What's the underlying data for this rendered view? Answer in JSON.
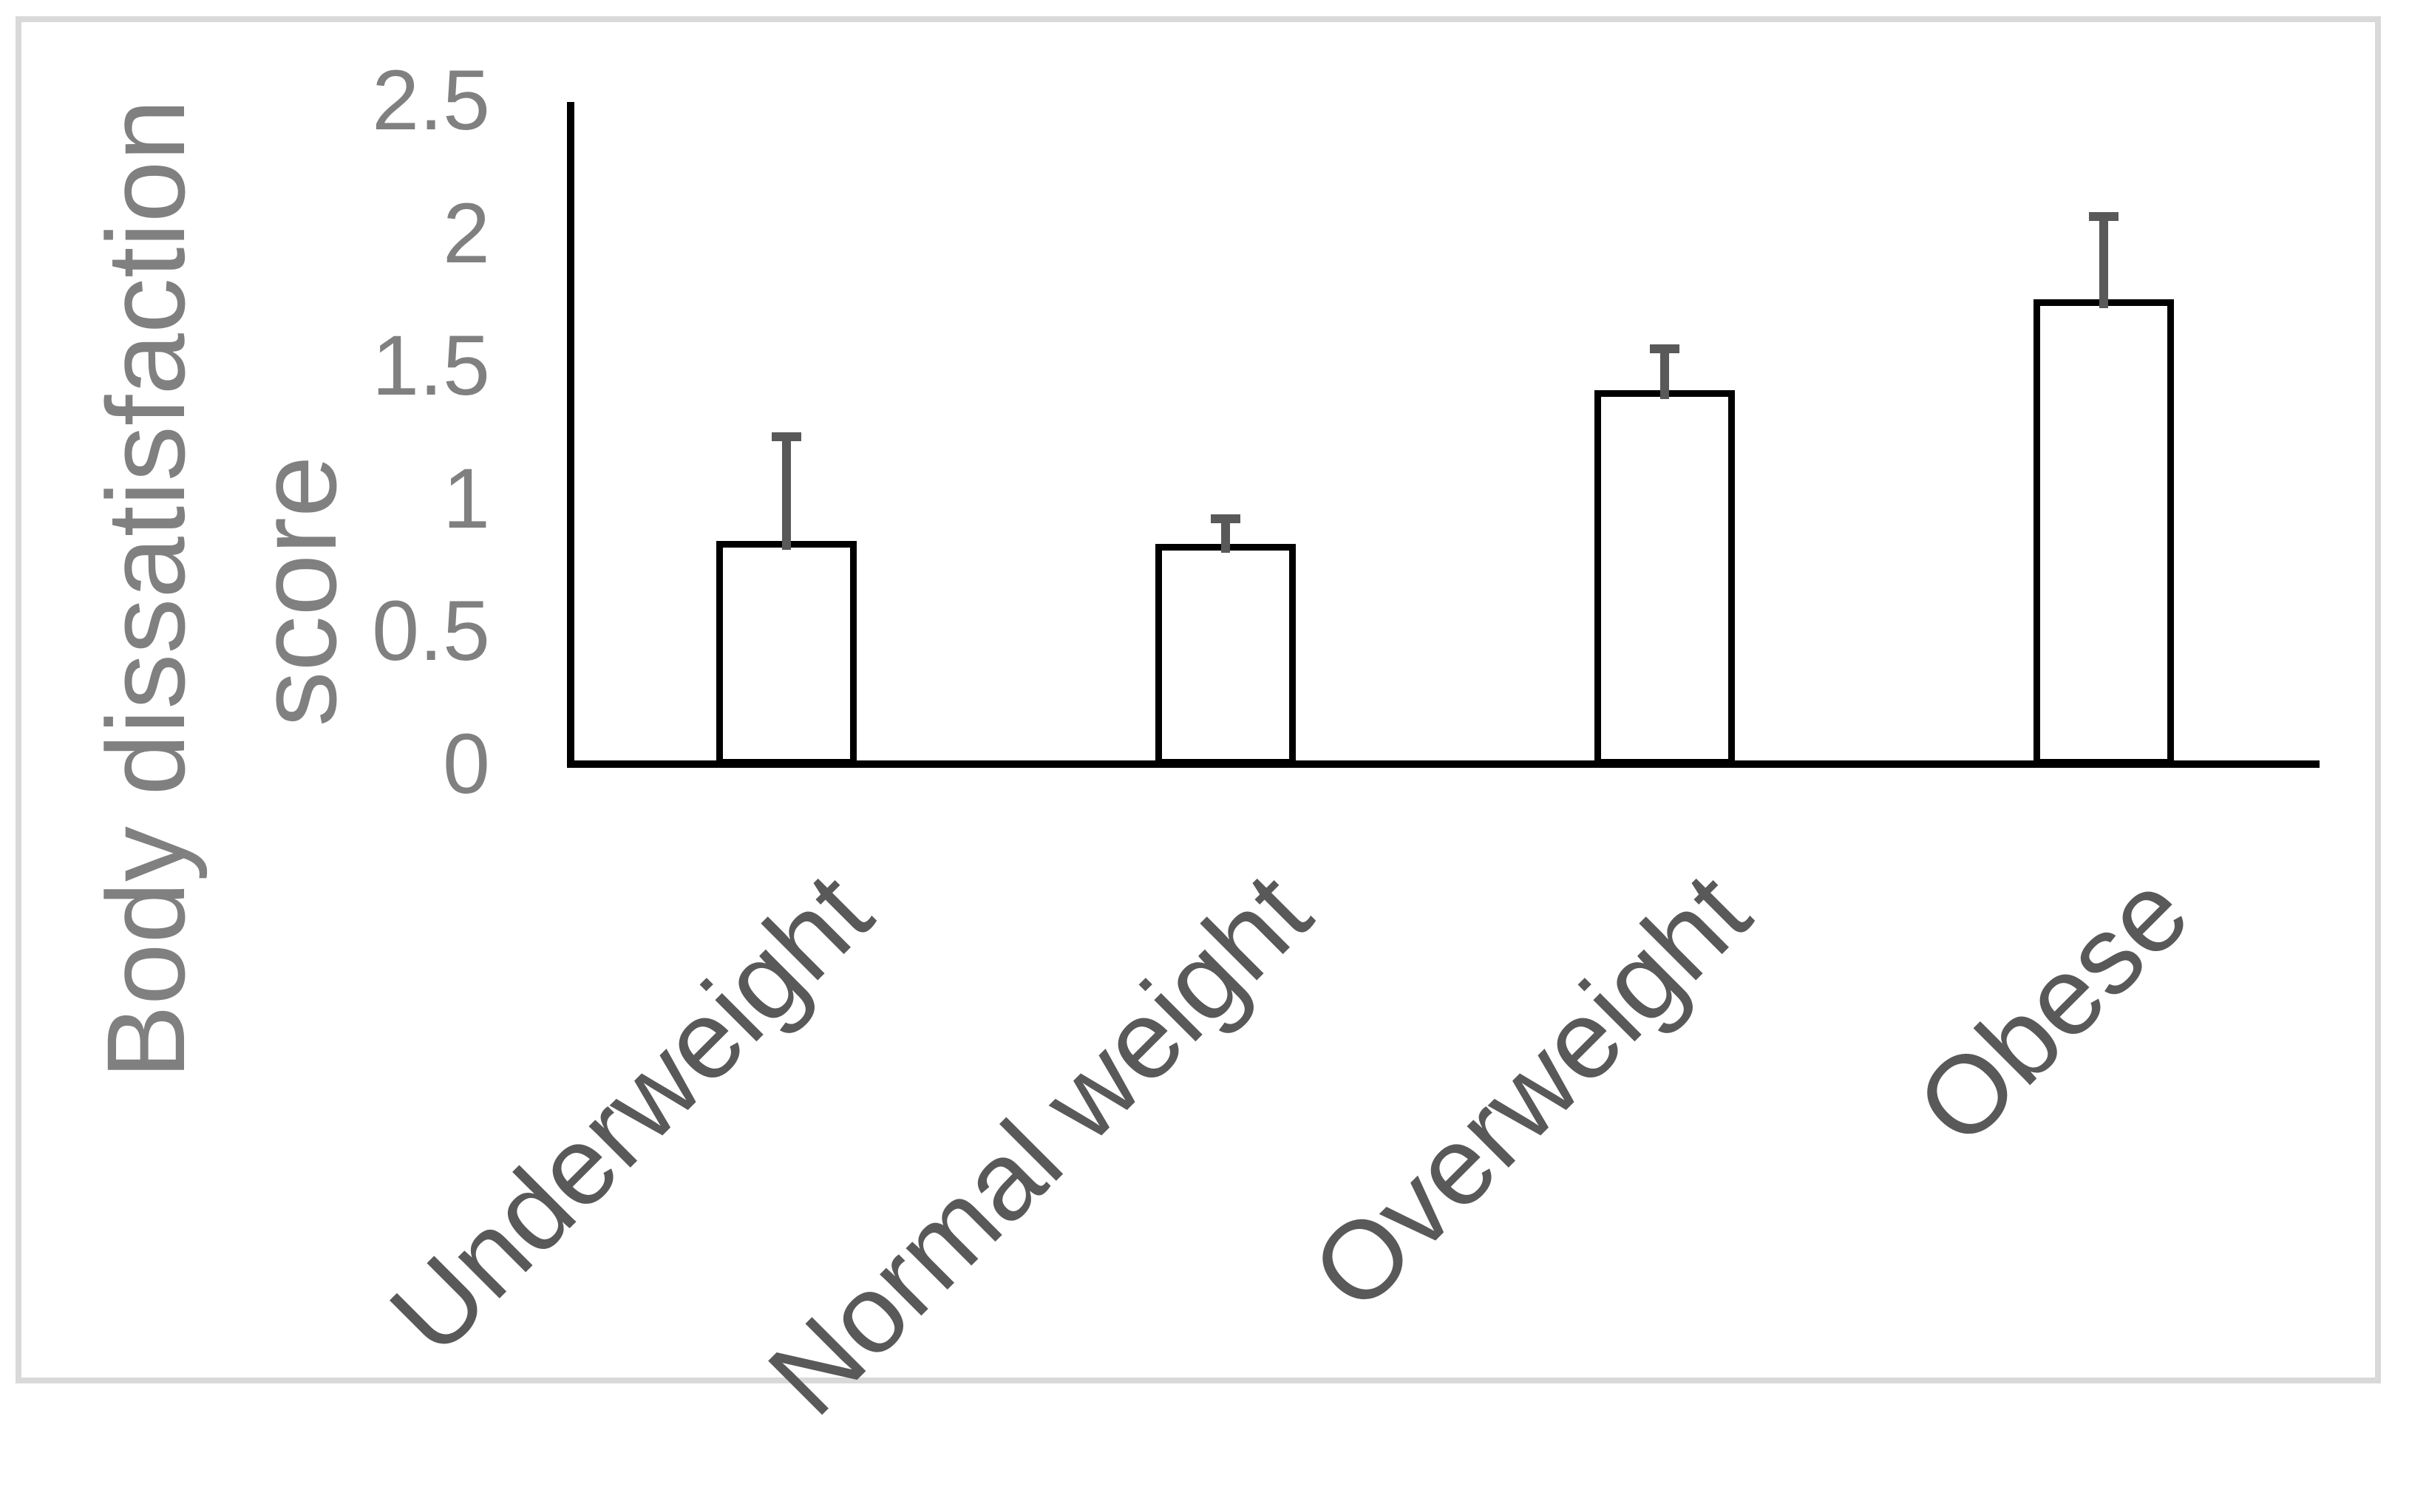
{
  "chart_data": {
    "type": "bar",
    "title": "",
    "categories": [
      "Underweight",
      "Normal weight",
      "Overweight",
      "Obese"
    ],
    "values": [
      0.84,
      0.83,
      1.41,
      1.75
    ],
    "errors_upper": [
      0.41,
      0.11,
      0.17,
      0.33
    ],
    "ylabel": "Body dissatisfaction score",
    "ylabel_lines": [
      "Body dissatisfaction",
      "score"
    ],
    "ytick_labels": [
      "0",
      "0.5",
      "1",
      "1.5",
      "2",
      "2.5"
    ],
    "ytick_values": [
      0,
      0.5,
      1,
      1.5,
      2,
      2.5
    ],
    "ylim": [
      0,
      2.5
    ],
    "grid": "off",
    "legend": "none",
    "category_rotation_deg": -45,
    "bar_fill": "#ffffff",
    "bar_border_color": "#000000",
    "error_bar_color": "#595959",
    "axis_color": "#000000",
    "tick_label_color": "#808080",
    "ylabel_color": "#808080",
    "category_label_color": "#595959",
    "frame_color": "#d9d9d9",
    "background_color": "#ffffff"
  }
}
